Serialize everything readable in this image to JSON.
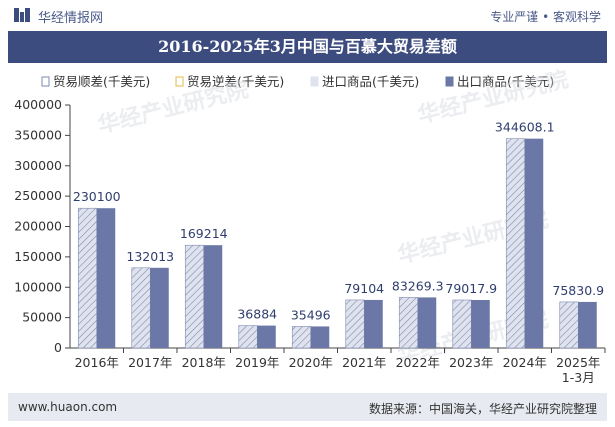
{
  "header": {
    "brand": "华经情报网",
    "tagline": "专业严谨 • 客观科学"
  },
  "title": "2016-2025年3月中国与百慕大贸易差额",
  "footer": {
    "website": "www.huaon.com",
    "source": "数据来源：中国海关，华经产业研究院整理"
  },
  "watermark": "华经产业研究院",
  "colors": {
    "title_bg": "#3d4c7e",
    "import_bar": "#dfe3ee",
    "import_hatch": "#7f8bb0",
    "export_bar": "#6b77a6",
    "text": "#333333",
    "footer_bg": "#e8eaf1"
  },
  "chart_data": {
    "type": "bar",
    "categories": [
      "2016年",
      "2017年",
      "2018年",
      "2019年",
      "2020年",
      "2021年",
      "2022年",
      "2023年",
      "2024年",
      "2025年\n1-3月"
    ],
    "series": [
      {
        "name": "贸易顺差(千美元)",
        "values": [
          230100,
          132013,
          169214,
          36884,
          35496,
          79104,
          83269.3,
          79017.9,
          344608.1,
          75830.9
        ]
      },
      {
        "name": "贸易逆差(千美元)",
        "values": [
          0,
          0,
          0,
          0,
          0,
          0,
          0,
          0,
          0,
          0
        ]
      },
      {
        "name": "进口商品(千美元)",
        "values": [
          230100,
          132013,
          169214,
          36884,
          35496,
          79104,
          83269.3,
          79017.9,
          344608.1,
          75830.9
        ]
      },
      {
        "name": "出口商品(千美元)",
        "values": [
          230100,
          132013,
          169214,
          36884,
          35496,
          79104,
          83269.3,
          79017.9,
          344608.1,
          75830.9
        ]
      }
    ],
    "data_labels": [
      "230100",
      "132013",
      "169214",
      "36884",
      "35496",
      "79104",
      "83269.3",
      "79017.9",
      "344608.1",
      "75830.9"
    ],
    "ylim": [
      0,
      400000
    ],
    "yticks": [
      0,
      50000,
      100000,
      150000,
      200000,
      250000,
      300000,
      350000,
      400000
    ],
    "legend_position": "top",
    "grid": false
  }
}
